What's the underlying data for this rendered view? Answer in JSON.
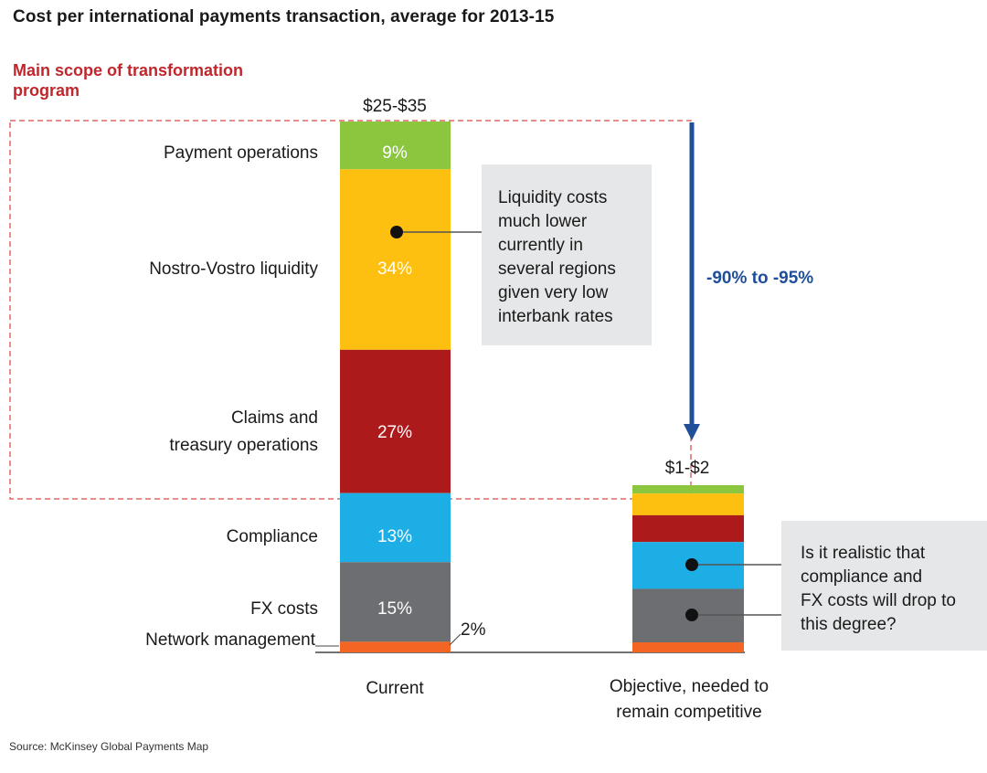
{
  "title": "Cost per international payments transaction, average for 2013-15",
  "scope_label": "Main scope of transformation program",
  "source": "Source: McKinsey Global Payments Map",
  "colors": {
    "payment_operations": "#8cc63f",
    "nostro_vostro": "#fdc010",
    "claims_treasury": "#ad1a1c",
    "compliance": "#1eaee6",
    "fx_costs": "#6d6e71",
    "network_management": "#f26522",
    "arrow": "#1f4e9a",
    "scope_border": "#e06666",
    "callout_bg": "#e6e7e8"
  },
  "chart_data": {
    "type": "bar",
    "stacked": true,
    "categories": [
      "Current",
      "Objective, needed to remain competitive"
    ],
    "totals": [
      "$25-$35",
      "$1-$2"
    ],
    "segments": [
      {
        "name": "Payment operations",
        "color_key": "payment_operations",
        "values": [
          9,
          null
        ],
        "label": "9%"
      },
      {
        "name": "Nostro-Vostro liquidity",
        "color_key": "nostro_vostro",
        "values": [
          34,
          null
        ],
        "label": "34%"
      },
      {
        "name": "Claims and treasury operations",
        "color_key": "claims_treasury",
        "values": [
          27,
          null
        ],
        "label": "27%"
      },
      {
        "name": "Compliance",
        "color_key": "compliance",
        "values": [
          13,
          null
        ],
        "label": "13%"
      },
      {
        "name": "FX costs",
        "color_key": "fx_costs",
        "values": [
          15,
          null
        ],
        "label": "15%"
      },
      {
        "name": "Network management",
        "color_key": "network_management",
        "values": [
          2,
          null
        ],
        "label": "2%"
      }
    ],
    "reduction_label": "-90% to -95%",
    "callouts": [
      {
        "text": [
          "Liquidity costs",
          "much lower",
          "currently in",
          "several regions",
          "given very low",
          "interbank rates"
        ]
      },
      {
        "text": [
          "Is it realistic that",
          "compliance and",
          "FX costs will drop to",
          "this degree?"
        ]
      }
    ]
  }
}
